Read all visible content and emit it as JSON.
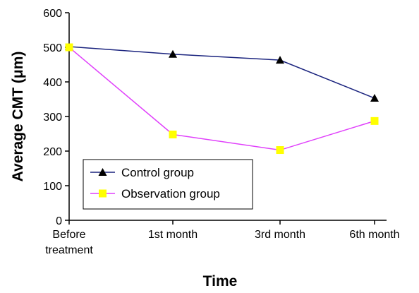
{
  "chart_data": {
    "type": "line",
    "categories": [
      "Before treatment",
      "1st month",
      "3rd month",
      "6th month"
    ],
    "series": [
      {
        "name": "Control group",
        "values": [
          502,
          480,
          463,
          353
        ],
        "color": "#1a237e",
        "marker": "triangle",
        "marker_color": "#000000"
      },
      {
        "name": "Observation group",
        "values": [
          500,
          248,
          203,
          287
        ],
        "color": "#e040fb",
        "marker": "square",
        "marker_color": "#ffff00"
      }
    ],
    "title": "",
    "xlabel": "Time",
    "ylabel": "Average CMT (μm)",
    "ylim": [
      0,
      600
    ],
    "yticks": [
      0,
      100,
      200,
      300,
      400,
      500,
      600
    ],
    "grid": false,
    "legend": "bottom-left"
  }
}
